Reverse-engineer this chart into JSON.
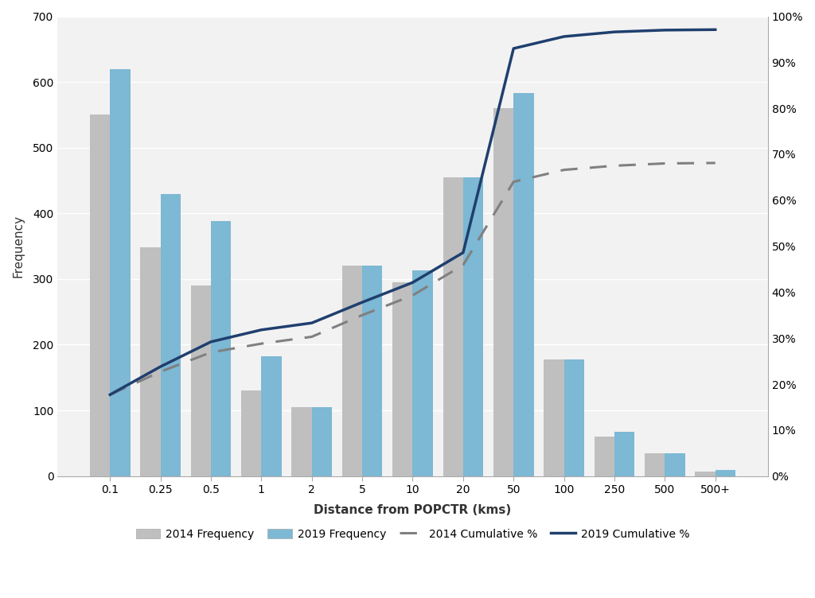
{
  "categories": [
    "0.1",
    "0.25",
    "0.5",
    "1",
    "2",
    "5",
    "10",
    "20",
    "50",
    "100",
    "250",
    "500",
    "500+"
  ],
  "freq_2014": [
    550,
    348,
    290,
    130,
    105,
    320,
    295,
    455,
    560,
    178,
    60,
    35,
    7
  ],
  "freq_2019": [
    620,
    430,
    388,
    183,
    105,
    320,
    313,
    455,
    583,
    178,
    67,
    35,
    9
  ],
  "cum_2014": [
    0.177,
    0.227,
    0.269,
    0.288,
    0.303,
    0.35,
    0.393,
    0.459,
    0.64,
    0.666,
    0.675,
    0.68,
    0.681
  ],
  "cum_2019": [
    0.177,
    0.238,
    0.292,
    0.318,
    0.333,
    0.378,
    0.421,
    0.486,
    0.93,
    0.956,
    0.966,
    0.97,
    0.971
  ],
  "color_2014_bar": "#bfbfbf",
  "color_2019_bar": "#7db8d4",
  "color_2014_cum": "#808080",
  "color_2019_cum": "#1f3f6e",
  "ylabel_left": "Frequency",
  "xlabel": "Distance from POPCTR (kms)",
  "ylim_left": [
    0,
    700
  ],
  "ylim_right": [
    0,
    1.0
  ],
  "yticks_right": [
    0.0,
    0.1,
    0.2,
    0.3,
    0.4,
    0.5,
    0.6,
    0.7,
    0.8,
    0.9,
    1.0
  ],
  "ytick_labels_right": [
    "0%",
    "10%",
    "20%",
    "30%",
    "40%",
    "50%",
    "60%",
    "70%",
    "80%",
    "90%",
    "100%"
  ],
  "yticks_left": [
    0,
    100,
    200,
    300,
    400,
    500,
    600,
    700
  ],
  "legend_labels": [
    "2014 Frequency",
    "2019 Frequency",
    "2014 Cumulative %",
    "2019 Cumulative %"
  ],
  "bg_color": "#f2f2f2"
}
